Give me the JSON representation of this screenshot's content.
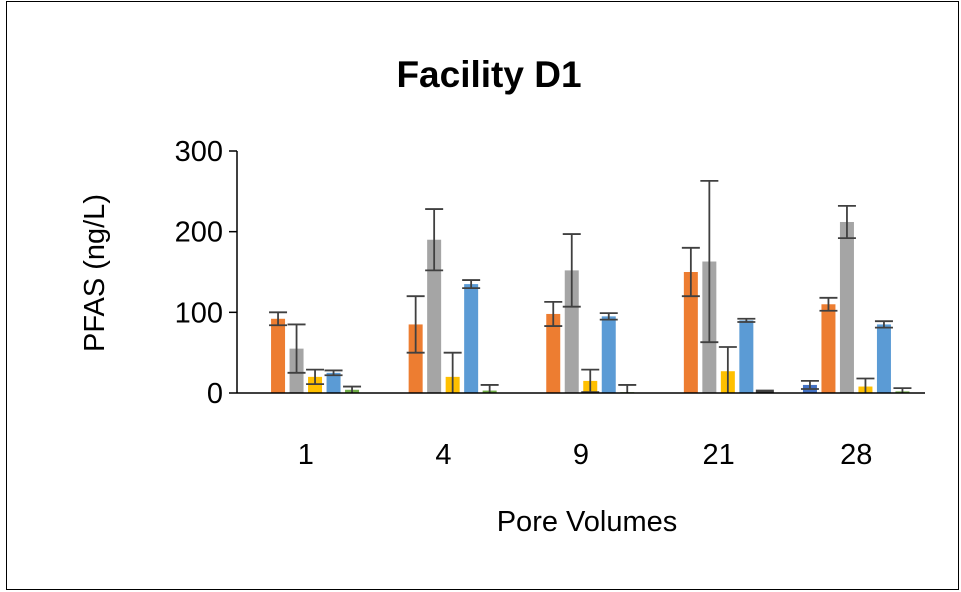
{
  "chart_data": {
    "type": "bar",
    "title": "Facility D1",
    "xlabel": "Pore Volumes",
    "ylabel": "PFAS (ng/L)",
    "categories": [
      "1",
      "4",
      "9",
      "21",
      "28"
    ],
    "ylim": [
      0,
      300
    ],
    "yticks": [
      0,
      100,
      200,
      300
    ],
    "grid": false,
    "legend": "none",
    "error_bars": true,
    "series": [
      {
        "color": "#4472C4",
        "values": [
          0,
          0,
          0,
          0,
          10
        ],
        "errors": [
          0,
          0,
          0,
          0,
          5
        ]
      },
      {
        "color": "#ED7D31",
        "values": [
          92,
          85,
          98,
          150,
          110
        ],
        "errors": [
          8,
          35,
          15,
          30,
          8
        ]
      },
      {
        "color": "#A5A5A5",
        "values": [
          55,
          190,
          152,
          163,
          212
        ],
        "errors": [
          30,
          38,
          45,
          100,
          20
        ]
      },
      {
        "color": "#FFC000",
        "values": [
          20,
          20,
          15,
          27,
          8
        ],
        "errors": [
          9,
          30,
          14,
          30,
          10
        ]
      },
      {
        "color": "#5B9BD5",
        "values": [
          25,
          135,
          95,
          90,
          85
        ],
        "errors": [
          3,
          5,
          4,
          2,
          4
        ]
      },
      {
        "color": "#70AD47",
        "values": [
          4,
          3,
          1,
          2,
          2
        ],
        "errors": [
          4,
          7,
          9,
          1,
          4
        ]
      }
    ]
  }
}
